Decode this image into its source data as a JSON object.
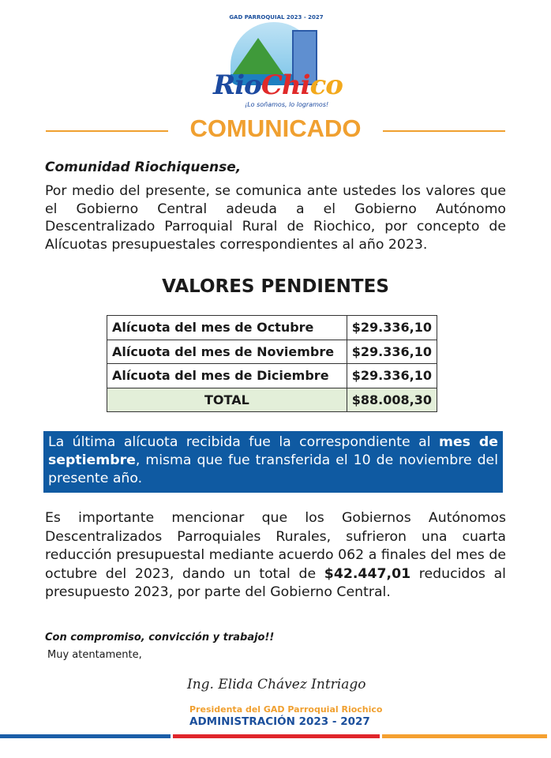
{
  "logo": {
    "arc_text": "GAD PARROQUIAL 2023 - 2027",
    "word_1": "Rio",
    "word_2": "Chi",
    "word_3": "co",
    "slogan": "¡Lo soñamos, lo logramos!"
  },
  "title": "COMUNICADO",
  "greeting": "Comunidad Riochiquense,",
  "intro": "Por medio del presente, se comunica ante ustedes los valores que el Gobierno Central adeuda a el Gobierno Autónomo Descentralizado Parroquial Rural de Riochico, por concepto de Alícuotas presupuestales correspondientes al año 2023.",
  "subtitle": "VALORES PENDIENTES",
  "table": {
    "rows": [
      {
        "label": "Alícuota del mes de Octubre",
        "value": "$29.336,10"
      },
      {
        "label": "Alícuota del mes de Noviembre",
        "value": "$29.336,10"
      },
      {
        "label": "Alícuota del mes de Diciembre",
        "value": "$29.336,10"
      }
    ],
    "total_label": "TOTAL",
    "total_value": "$88.008,30"
  },
  "notice": {
    "part1": "La última alícuota recibida fue la correspondiente al ",
    "bold": "mes de septiembre",
    "part2": ", misma que fue transferida el 10 de noviembre del presente año."
  },
  "body": {
    "part1": "Es importante mencionar que los Gobiernos Autónomos Descentralizados Parroquiales Rurales, sufrieron una cuarta reducción presupuestal mediante acuerdo 062 a finales del mes de octubre del 2023, dando un total de ",
    "bold": "$42.447,01",
    "part2": " reducidos al presupuesto 2023, por parte del Gobierno Central."
  },
  "closing": "Con compromiso, convicción y trabajo!!",
  "regards": "Muy atentamente,",
  "signature": "Ing. Elida Chávez Intriago",
  "position": "Presidenta del GAD Parroquial Riochico",
  "administration": "ADMINISTRACIÓN 2023 - 2027",
  "colors": {
    "orange": "#f0a030",
    "blue": "#0f5aa2",
    "red": "#e0262b",
    "navy": "#1b4f9c"
  }
}
